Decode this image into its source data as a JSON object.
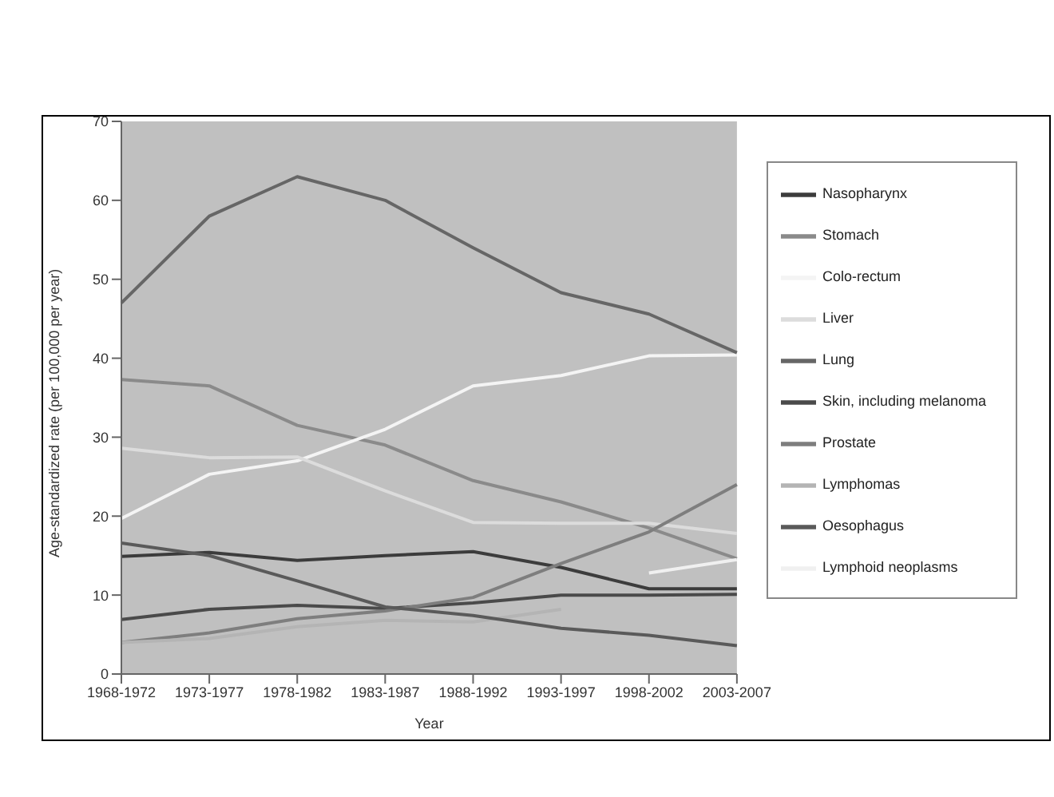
{
  "chart_data": {
    "type": "line",
    "xlabel": "Year",
    "ylabel": "Age-standardized rate (per 100,000 per year)",
    "categories": [
      "1968-1972",
      "1973-1977",
      "1978-1982",
      "1983-1987",
      "1988-1992",
      "1993-1997",
      "1998-2002",
      "2003-2007"
    ],
    "series": [
      {
        "name": "Nasopharynx",
        "color": "#3c3c3c",
        "values": [
          14.9,
          15.4,
          14.4,
          15,
          15.5,
          13.5,
          10.8,
          10.8
        ]
      },
      {
        "name": "Stomach",
        "color": "#8a8a8a",
        "values": [
          37.3,
          36.5,
          31.5,
          29,
          24.5,
          21.8,
          18.5,
          14.6
        ]
      },
      {
        "name": "Colo-rectum",
        "color": "#f4f4f4",
        "values": [
          19.7,
          25.3,
          27,
          31,
          36.5,
          37.8,
          40.3,
          40.4
        ]
      },
      {
        "name": "Liver",
        "color": "#dcdcdc",
        "values": [
          28.6,
          27.4,
          27.5,
          23.2,
          19.2,
          19.1,
          19.1,
          17.8
        ]
      },
      {
        "name": "Lung",
        "color": "#666666",
        "values": [
          47,
          58,
          63,
          60,
          54,
          48.3,
          45.6,
          40.7
        ]
      },
      {
        "name": "Skin, including melanoma",
        "color": "#4a4a4a",
        "values": [
          6.9,
          8.2,
          8.7,
          8.3,
          9,
          10,
          10,
          10.1
        ]
      },
      {
        "name": "Prostate",
        "color": "#7e7e7e",
        "values": [
          4,
          5.2,
          7,
          8,
          9.7,
          14,
          18,
          24
        ]
      },
      {
        "name": "Lymphomas",
        "color": "#b4b4b4",
        "values": [
          4,
          4.5,
          6,
          6.8,
          6.6,
          8.2,
          null,
          null
        ]
      },
      {
        "name": "Oesophagus",
        "color": "#5a5a5a",
        "values": [
          16.6,
          15,
          11.8,
          8.5,
          7.4,
          5.8,
          4.9,
          3.6
        ]
      },
      {
        "name": "Lymphoid neoplasms",
        "color": "#f0f0f0",
        "values": [
          null,
          null,
          null,
          null,
          null,
          null,
          12.8,
          14.5
        ]
      }
    ],
    "ylim": [
      0,
      70
    ],
    "yticks": [
      0,
      10,
      20,
      30,
      40,
      50,
      60,
      70
    ],
    "grid": false,
    "legend": "right",
    "marker": "none"
  }
}
